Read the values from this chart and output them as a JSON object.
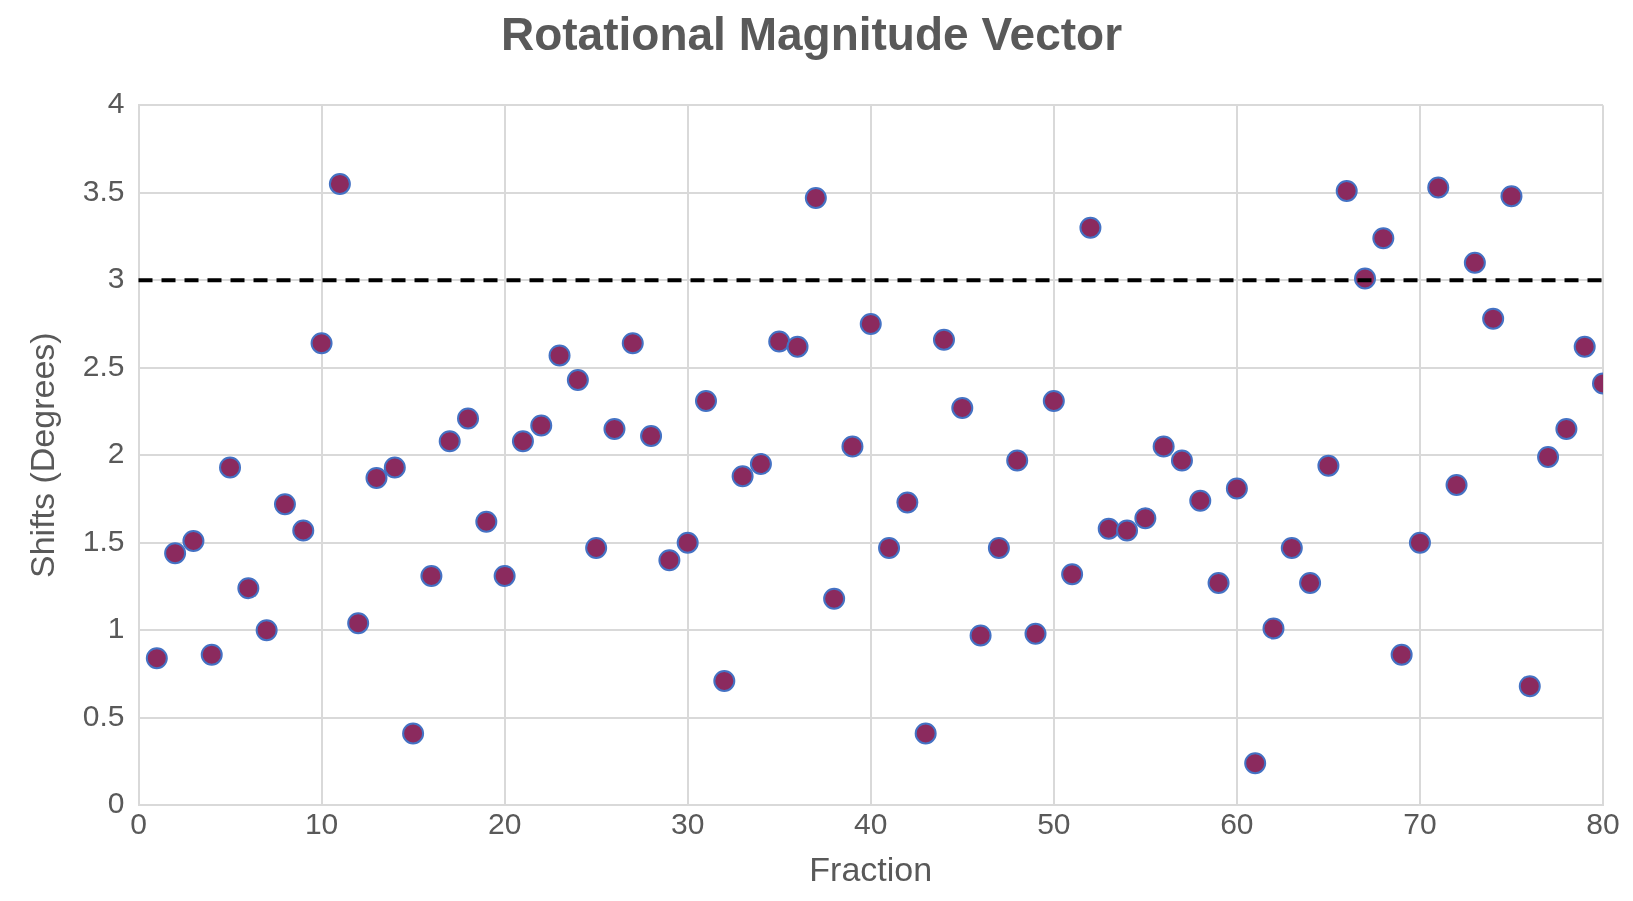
{
  "chart_data": {
    "type": "scatter",
    "title": "Rotational Magnitude Vector",
    "xlabel": "Fraction",
    "ylabel": "Shifts (Degrees)",
    "x": [
      1,
      2,
      3,
      4,
      5,
      6,
      7,
      8,
      9,
      10,
      11,
      12,
      13,
      14,
      15,
      16,
      17,
      18,
      19,
      20,
      21,
      22,
      23,
      24,
      25,
      26,
      27,
      28,
      29,
      30,
      31,
      32,
      33,
      34,
      35,
      36,
      37,
      38,
      39,
      40,
      41,
      42,
      43,
      44,
      45,
      46,
      47,
      48,
      49,
      50,
      51,
      52,
      53,
      54,
      55,
      56,
      57,
      58,
      59,
      60,
      61,
      62,
      63,
      64,
      65,
      66,
      67,
      68,
      69,
      70,
      71,
      72,
      73,
      74,
      75,
      76,
      77,
      78,
      79,
      80
    ],
    "series": [
      {
        "color": "#8b2a5e",
        "values": [
          0.84,
          1.44,
          1.51,
          0.86,
          1.93,
          1.24,
          1.0,
          1.72,
          1.57,
          2.64,
          3.55,
          1.04,
          1.87,
          1.93,
          0.41,
          1.31,
          2.08,
          2.21,
          1.62,
          1.31,
          2.08,
          2.17,
          2.57,
          2.43,
          1.47,
          2.15,
          2.64,
          2.11,
          1.4,
          1.5,
          2.31,
          0.71,
          1.88,
          1.95,
          2.65,
          2.62,
          3.47,
          1.18,
          2.05,
          2.75,
          1.47,
          1.73,
          0.41,
          2.66,
          2.27,
          0.97,
          1.47,
          1.97,
          0.98,
          2.31,
          1.32,
          3.3,
          1.58,
          1.57,
          1.64,
          2.05,
          1.97,
          1.74,
          1.27,
          1.81,
          0.24,
          1.01,
          1.47,
          1.27,
          1.94,
          3.51,
          3.01,
          3.24,
          0.86,
          1.5,
          3.53,
          1.83,
          3.1,
          2.78,
          3.48,
          0.68,
          1.99,
          2.15,
          2.62,
          2.41
        ]
      }
    ],
    "xlim": [
      0,
      80
    ],
    "xticks": [
      0,
      10,
      20,
      30,
      40,
      50,
      60,
      70,
      80
    ],
    "ylim": [
      0,
      4
    ],
    "yticks": [
      0,
      0.5,
      1,
      1.5,
      2,
      2.5,
      3,
      3.5,
      4
    ],
    "grid": true,
    "legend": false,
    "marker": "circle",
    "ref_lines": [
      {
        "axis": "y",
        "value": 3,
        "color": "#000000",
        "line_style": "dashed"
      }
    ]
  }
}
